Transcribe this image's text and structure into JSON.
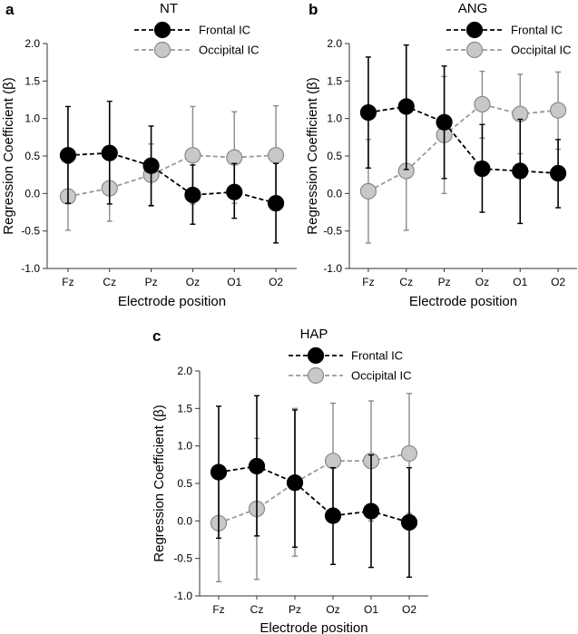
{
  "chart_data": [
    {
      "type": "line",
      "panel_letter": "a",
      "title": "NT",
      "xlabel": "Electrode position",
      "ylabel": "Regression Coefficient (β)",
      "ylim": [
        -1.0,
        2.0
      ],
      "yticks": [
        "-1.0",
        "-0.5",
        "0.0",
        "0.5",
        "1.0",
        "1.5",
        "2.0"
      ],
      "categories": [
        "Fz",
        "Cz",
        "Pz",
        "Oz",
        "O1",
        "O2"
      ],
      "legend_position": "top-center",
      "series": [
        {
          "name": "Frontal IC",
          "color": "#000000",
          "values": [
            0.51,
            0.54,
            0.37,
            -0.02,
            0.02,
            -0.13
          ],
          "upper": [
            1.16,
            1.23,
            0.9,
            0.38,
            0.4,
            0.4
          ],
          "lower": [
            -0.13,
            -0.14,
            -0.16,
            -0.41,
            -0.33,
            -0.66
          ]
        },
        {
          "name": "Occipital IC",
          "color": "#c8c8c8",
          "values": [
            -0.04,
            0.07,
            0.25,
            0.51,
            0.48,
            0.51
          ],
          "upper": [
            0.4,
            0.5,
            0.66,
            1.16,
            1.09,
            1.17
          ],
          "lower": [
            -0.49,
            -0.37,
            -0.17,
            -0.14,
            -0.13,
            -0.16
          ]
        }
      ]
    },
    {
      "type": "line",
      "panel_letter": "b",
      "title": "ANG",
      "xlabel": "Electrode position",
      "ylabel": "Regression Coefficient (β)",
      "ylim": [
        -1.0,
        2.0
      ],
      "yticks": [
        "-1.0",
        "-0.5",
        "0.0",
        "0.5",
        "1.0",
        "1.5",
        "2.0"
      ],
      "categories": [
        "Fz",
        "Cz",
        "Pz",
        "Oz",
        "O1",
        "O2"
      ],
      "legend_position": "top-center",
      "series": [
        {
          "name": "Frontal IC",
          "color": "#000000",
          "values": [
            1.08,
            1.16,
            0.95,
            0.33,
            0.3,
            0.27
          ],
          "upper": [
            1.82,
            1.98,
            1.7,
            0.92,
            0.99,
            0.72
          ],
          "lower": [
            0.34,
            0.32,
            0.2,
            -0.25,
            -0.4,
            -0.19
          ]
        },
        {
          "name": "Occipital IC",
          "color": "#c8c8c8",
          "values": [
            0.03,
            0.3,
            0.78,
            1.19,
            1.06,
            1.11
          ],
          "upper": [
            0.72,
            1.12,
            1.56,
            1.63,
            1.59,
            1.62
          ],
          "lower": [
            -0.66,
            -0.49,
            0.0,
            0.74,
            0.53,
            0.59
          ]
        }
      ]
    },
    {
      "type": "line",
      "panel_letter": "c",
      "title": "HAP",
      "xlabel": "Electrode position",
      "ylabel": "Regression Coefficient (β)",
      "ylim": [
        -1.0,
        2.0
      ],
      "yticks": [
        "-1.0",
        "-0.5",
        "0.0",
        "0.5",
        "1.0",
        "1.5",
        "2.0"
      ],
      "categories": [
        "Fz",
        "Cz",
        "Pz",
        "Oz",
        "O1",
        "O2"
      ],
      "legend_position": "top-center",
      "series": [
        {
          "name": "Frontal IC",
          "color": "#000000",
          "values": [
            0.65,
            0.73,
            0.51,
            0.07,
            0.13,
            -0.02
          ],
          "upper": [
            1.53,
            1.67,
            1.48,
            0.71,
            0.88,
            0.71
          ],
          "lower": [
            -0.23,
            -0.2,
            -0.35,
            -0.58,
            -0.62,
            -0.75
          ]
        },
        {
          "name": "Occipital IC",
          "color": "#c8c8c8",
          "values": [
            -0.03,
            0.16,
            0.51,
            0.8,
            0.8,
            0.9
          ],
          "upper": [
            0.75,
            1.1,
            1.5,
            1.57,
            1.6,
            1.7
          ],
          "lower": [
            -0.81,
            -0.78,
            -0.47,
            0.03,
            0.0,
            0.1
          ]
        }
      ]
    }
  ]
}
